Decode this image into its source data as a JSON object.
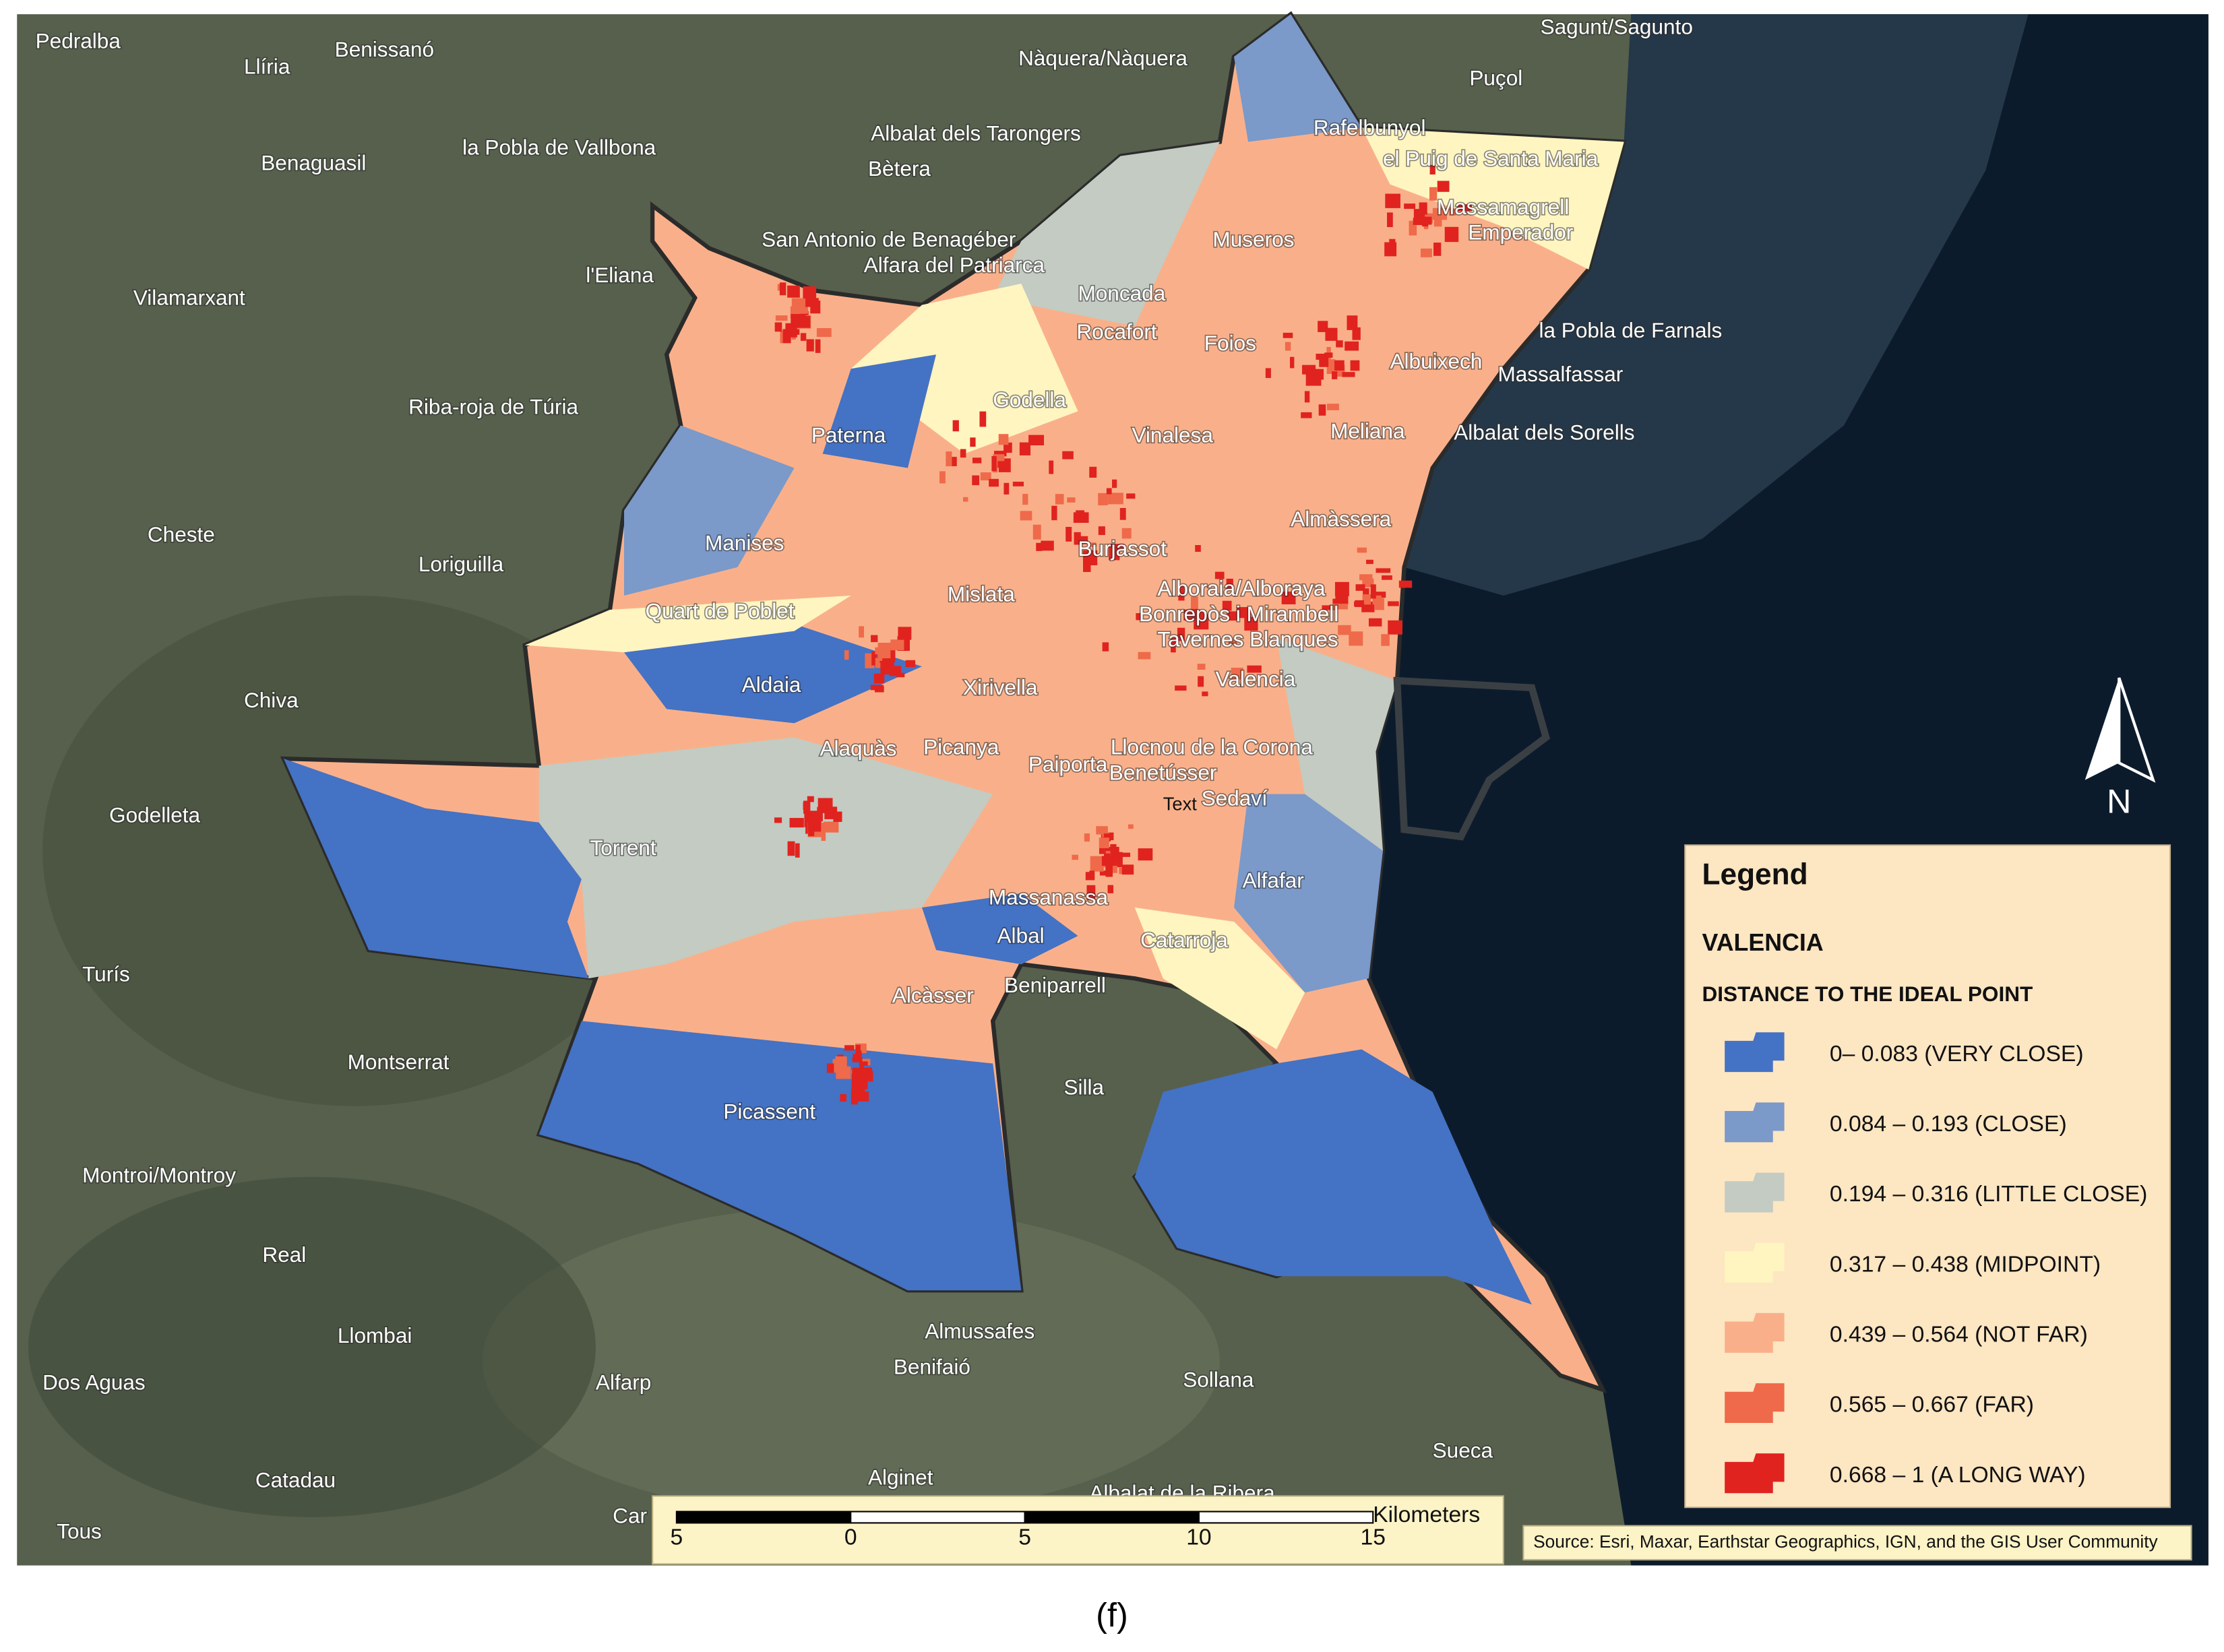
{
  "places": [
    "Pedralba",
    "Llíria",
    "Benissanó",
    "Nàquera/Nàquera",
    "Sagunt/Sagunto",
    "Puçol",
    "la Pobla de Vallbona",
    "Albalat dels Tarongers",
    "Benaguasil",
    "Bètera",
    "Rafelbunyol",
    "el Puig de Santa Maria",
    "Massamagrell",
    "Emperador",
    "San Antonio de Benagéber",
    "Alfara del Patriarca",
    "Museros",
    "l'Eliana",
    "Vilamarxant",
    "Moncada",
    "Rocafort",
    "Foios",
    "la Pobla de Farnals",
    "Albuixech",
    "Massalfassar",
    "Godella",
    "Riba-roja de Túria",
    "Paterna",
    "Vinalesa",
    "Meliana",
    "Albalat dels Sorells",
    "Almàssera",
    "Cheste",
    "Manises",
    "Burjassot",
    "Loriguilla",
    "Alboraia/Alboraya",
    "Mislata",
    "Quart de Poblet",
    "Bonrepòs i Mirambell",
    "Tavernes Blanques",
    "Valencia",
    "Xirivella",
    "Aldaia",
    "Chiva",
    "Alaquàs",
    "Picanya",
    "Llocnou de la Corona",
    "Paiporta",
    "Benetússer",
    "Sedaví",
    "Text",
    "Godelleta",
    "Torrent",
    "Alfafar",
    "Massanassa",
    "Albal",
    "Catarroja",
    "Turís",
    "Beniparrell",
    "Alcàsser",
    "Montserrat",
    "Silla",
    "Picassent",
    "Montroi/Montroy",
    "Real",
    "Llombai",
    "Almussafes",
    "Benifaió",
    "Sollana",
    "Dos Aguas",
    "Alfarp",
    "Sueca",
    "Alginet",
    "Catadau",
    "Albalat de la Ribera",
    "Tous",
    "Car"
  ],
  "legend": {
    "title": "Legend",
    "subtitle": "VALENCIA",
    "heading": "DISTANCE TO THE IDEAL POINT",
    "items": [
      {
        "label": "0– 0.083 (VERY CLOSE)",
        "color": "#4472c4"
      },
      {
        "label": "0.084 – 0.193 (CLOSE)",
        "color": "#7b99c9"
      },
      {
        "label": "0.194 –  0.316 (LITTLE CLOSE)",
        "color": "#c3cbc2"
      },
      {
        "label": "0.317 – 0.438 (MIDPOINT)",
        "color": "#fff5c0"
      },
      {
        "label": "0.439 – 0.564 (NOT FAR)",
        "color": "#f9b08a"
      },
      {
        "label": "0.565 – 0.667 (FAR)",
        "color": "#ef6a4a"
      },
      {
        "label": "0.668 – 1 (A LONG WAY)",
        "color": "#e0231f"
      }
    ]
  },
  "scale_bar": {
    "ticks": [
      "5",
      "0",
      "5",
      "10",
      "15"
    ],
    "unit": "Kilometers"
  },
  "north_arrow": "N",
  "source": "Source: Esri, Maxar, Earthstar Geographics, IGN, and the GIS User Community",
  "caption": "(f)"
}
